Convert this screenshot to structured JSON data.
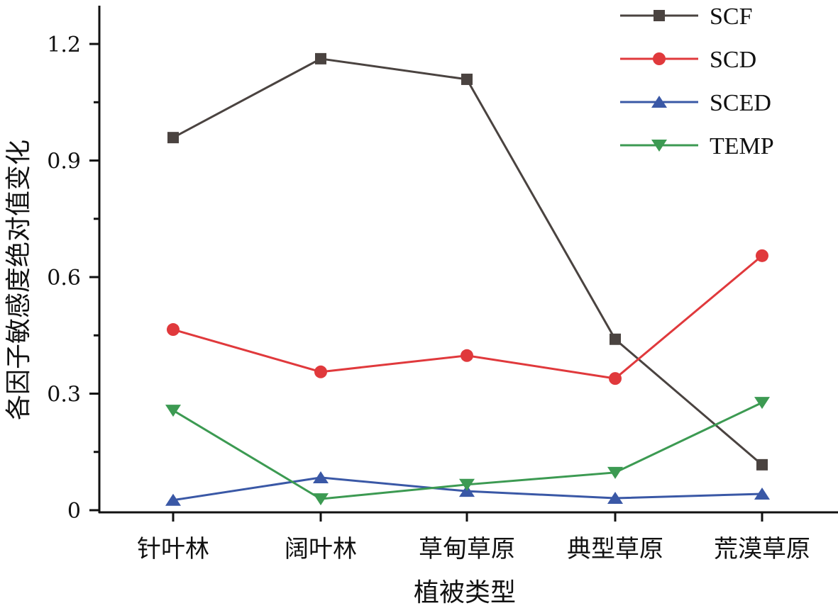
{
  "chart_data": {
    "type": "line",
    "title": "",
    "xlabel": "植被类型",
    "ylabel": "各因子敏感度绝对值变化",
    "categories": [
      "针叶林",
      "阔叶林",
      "草甸草原",
      "典型草原",
      "荒漠草原"
    ],
    "ylim": [
      0,
      1.25
    ],
    "yticks": [
      0,
      0.3,
      0.6,
      0.9,
      1.2
    ],
    "ytick_labels": [
      "0",
      "0.3",
      "0.6",
      "0.9",
      "1.2"
    ],
    "grid": false,
    "legend_position": "top-right",
    "series": [
      {
        "name": "SCF",
        "color": "#4a4340",
        "marker": "square",
        "values": [
          0.959,
          1.162,
          1.109,
          0.44,
          0.117
        ]
      },
      {
        "name": "SCD",
        "color": "#e0393c",
        "marker": "circle",
        "values": [
          0.465,
          0.356,
          0.398,
          0.339,
          0.655
        ]
      },
      {
        "name": "SCED",
        "color": "#3a58a6",
        "marker": "triangle-up",
        "values": [
          0.026,
          0.084,
          0.049,
          0.031,
          0.042
        ]
      },
      {
        "name": "TEMP",
        "color": "#3c9a52",
        "marker": "triangle-down",
        "values": [
          0.257,
          0.029,
          0.066,
          0.097,
          0.277
        ]
      }
    ]
  }
}
